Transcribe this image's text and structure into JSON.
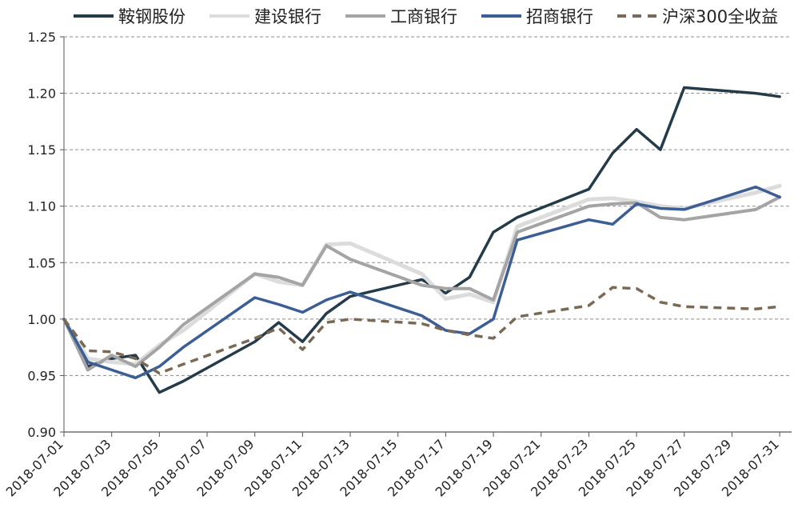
{
  "chart_data": {
    "type": "line",
    "title": "",
    "xlabel": "",
    "ylabel": "",
    "ylim": [
      0.9,
      1.25
    ],
    "y_ticks": [
      "0.90",
      "0.95",
      "1.00",
      "1.05",
      "1.10",
      "1.15",
      "1.20",
      "1.25"
    ],
    "x_ticks": [
      "2018-07-01",
      "2018-07-03",
      "2018-07-05",
      "2018-07-07",
      "2018-07-09",
      "2018-07-11",
      "2018-07-13",
      "2018-07-15",
      "2018-07-17",
      "2018-07-19",
      "2018-07-21",
      "2018-07-23",
      "2018-07-25",
      "2018-07-27",
      "2018-07-29",
      "2018-07-31"
    ],
    "grid": "horizontal dashed",
    "legend_position": "top",
    "series": [
      {
        "name": "鞍钢股份",
        "color": "#243b4a",
        "style": "solid",
        "points": [
          [
            "2018-07-01",
            1.0
          ],
          [
            "2018-07-02",
            0.958
          ],
          [
            "2018-07-03",
            0.965
          ],
          [
            "2018-07-04",
            0.968
          ],
          [
            "2018-07-05",
            0.935
          ],
          [
            "2018-07-06",
            0.945
          ],
          [
            "2018-07-09",
            0.98
          ],
          [
            "2018-07-10",
            0.997
          ],
          [
            "2018-07-11",
            0.98
          ],
          [
            "2018-07-12",
            1.005
          ],
          [
            "2018-07-13",
            1.02
          ],
          [
            "2018-07-16",
            1.035
          ],
          [
            "2018-07-17",
            1.023
          ],
          [
            "2018-07-18",
            1.037
          ],
          [
            "2018-07-19",
            1.077
          ],
          [
            "2018-07-20",
            1.09
          ],
          [
            "2018-07-23",
            1.115
          ],
          [
            "2018-07-24",
            1.147
          ],
          [
            "2018-07-25",
            1.168
          ],
          [
            "2018-07-26",
            1.15
          ],
          [
            "2018-07-27",
            1.205
          ],
          [
            "2018-07-30",
            1.2
          ],
          [
            "2018-07-31",
            1.197
          ]
        ]
      },
      {
        "name": "建设银行",
        "color": "#dcdcdc",
        "style": "solid",
        "points": [
          [
            "2018-07-01",
            1.0
          ],
          [
            "2018-07-02",
            0.965
          ],
          [
            "2018-07-03",
            0.962
          ],
          [
            "2018-07-04",
            0.96
          ],
          [
            "2018-07-05",
            0.977
          ],
          [
            "2018-07-06",
            0.99
          ],
          [
            "2018-07-09",
            1.04
          ],
          [
            "2018-07-10",
            1.033
          ],
          [
            "2018-07-11",
            1.03
          ],
          [
            "2018-07-12",
            1.066
          ],
          [
            "2018-07-13",
            1.067
          ],
          [
            "2018-07-16",
            1.04
          ],
          [
            "2018-07-17",
            1.018
          ],
          [
            "2018-07-18",
            1.022
          ],
          [
            "2018-07-19",
            1.015
          ],
          [
            "2018-07-20",
            1.082
          ],
          [
            "2018-07-23",
            1.106
          ],
          [
            "2018-07-24",
            1.107
          ],
          [
            "2018-07-25",
            1.104
          ],
          [
            "2018-07-26",
            1.1
          ],
          [
            "2018-07-27",
            1.098
          ],
          [
            "2018-07-30",
            1.112
          ],
          [
            "2018-07-31",
            1.118
          ]
        ]
      },
      {
        "name": "工商银行",
        "color": "#a4a4a4",
        "style": "solid",
        "points": [
          [
            "2018-07-01",
            1.0
          ],
          [
            "2018-07-02",
            0.955
          ],
          [
            "2018-07-03",
            0.968
          ],
          [
            "2018-07-04",
            0.958
          ],
          [
            "2018-07-05",
            0.975
          ],
          [
            "2018-07-06",
            0.995
          ],
          [
            "2018-07-09",
            1.04
          ],
          [
            "2018-07-10",
            1.037
          ],
          [
            "2018-07-11",
            1.03
          ],
          [
            "2018-07-12",
            1.065
          ],
          [
            "2018-07-13",
            1.053
          ],
          [
            "2018-07-16",
            1.03
          ],
          [
            "2018-07-17",
            1.027
          ],
          [
            "2018-07-18",
            1.027
          ],
          [
            "2018-07-19",
            1.017
          ],
          [
            "2018-07-20",
            1.077
          ],
          [
            "2018-07-23",
            1.1
          ],
          [
            "2018-07-24",
            1.102
          ],
          [
            "2018-07-25",
            1.103
          ],
          [
            "2018-07-26",
            1.09
          ],
          [
            "2018-07-27",
            1.088
          ],
          [
            "2018-07-30",
            1.097
          ],
          [
            "2018-07-31",
            1.108
          ]
        ]
      },
      {
        "name": "招商银行",
        "color": "#3b5e96",
        "style": "solid",
        "points": [
          [
            "2018-07-01",
            1.0
          ],
          [
            "2018-07-02",
            0.962
          ],
          [
            "2018-07-03",
            0.955
          ],
          [
            "2018-07-04",
            0.948
          ],
          [
            "2018-07-05",
            0.958
          ],
          [
            "2018-07-06",
            0.975
          ],
          [
            "2018-07-09",
            1.019
          ],
          [
            "2018-07-10",
            1.013
          ],
          [
            "2018-07-11",
            1.006
          ],
          [
            "2018-07-12",
            1.017
          ],
          [
            "2018-07-13",
            1.024
          ],
          [
            "2018-07-16",
            1.003
          ],
          [
            "2018-07-17",
            0.99
          ],
          [
            "2018-07-18",
            0.987
          ],
          [
            "2018-07-19",
            1.0
          ],
          [
            "2018-07-20",
            1.07
          ],
          [
            "2018-07-23",
            1.088
          ],
          [
            "2018-07-24",
            1.084
          ],
          [
            "2018-07-25",
            1.102
          ],
          [
            "2018-07-26",
            1.098
          ],
          [
            "2018-07-27",
            1.097
          ],
          [
            "2018-07-30",
            1.117
          ],
          [
            "2018-07-31",
            1.108
          ]
        ]
      },
      {
        "name": "沪深300全收益",
        "color": "#7a6a55",
        "style": "dashed",
        "points": [
          [
            "2018-07-01",
            1.0
          ],
          [
            "2018-07-02",
            0.972
          ],
          [
            "2018-07-03",
            0.971
          ],
          [
            "2018-07-04",
            0.965
          ],
          [
            "2018-07-05",
            0.952
          ],
          [
            "2018-07-06",
            0.96
          ],
          [
            "2018-07-09",
            0.983
          ],
          [
            "2018-07-10",
            0.992
          ],
          [
            "2018-07-11",
            0.973
          ],
          [
            "2018-07-12",
            0.997
          ],
          [
            "2018-07-13",
            1.0
          ],
          [
            "2018-07-16",
            0.996
          ],
          [
            "2018-07-17",
            0.99
          ],
          [
            "2018-07-18",
            0.986
          ],
          [
            "2018-07-19",
            0.983
          ],
          [
            "2018-07-20",
            1.002
          ],
          [
            "2018-07-23",
            1.012
          ],
          [
            "2018-07-24",
            1.028
          ],
          [
            "2018-07-25",
            1.027
          ],
          [
            "2018-07-26",
            1.015
          ],
          [
            "2018-07-27",
            1.011
          ],
          [
            "2018-07-30",
            1.009
          ],
          [
            "2018-07-31",
            1.011
          ]
        ]
      }
    ]
  }
}
